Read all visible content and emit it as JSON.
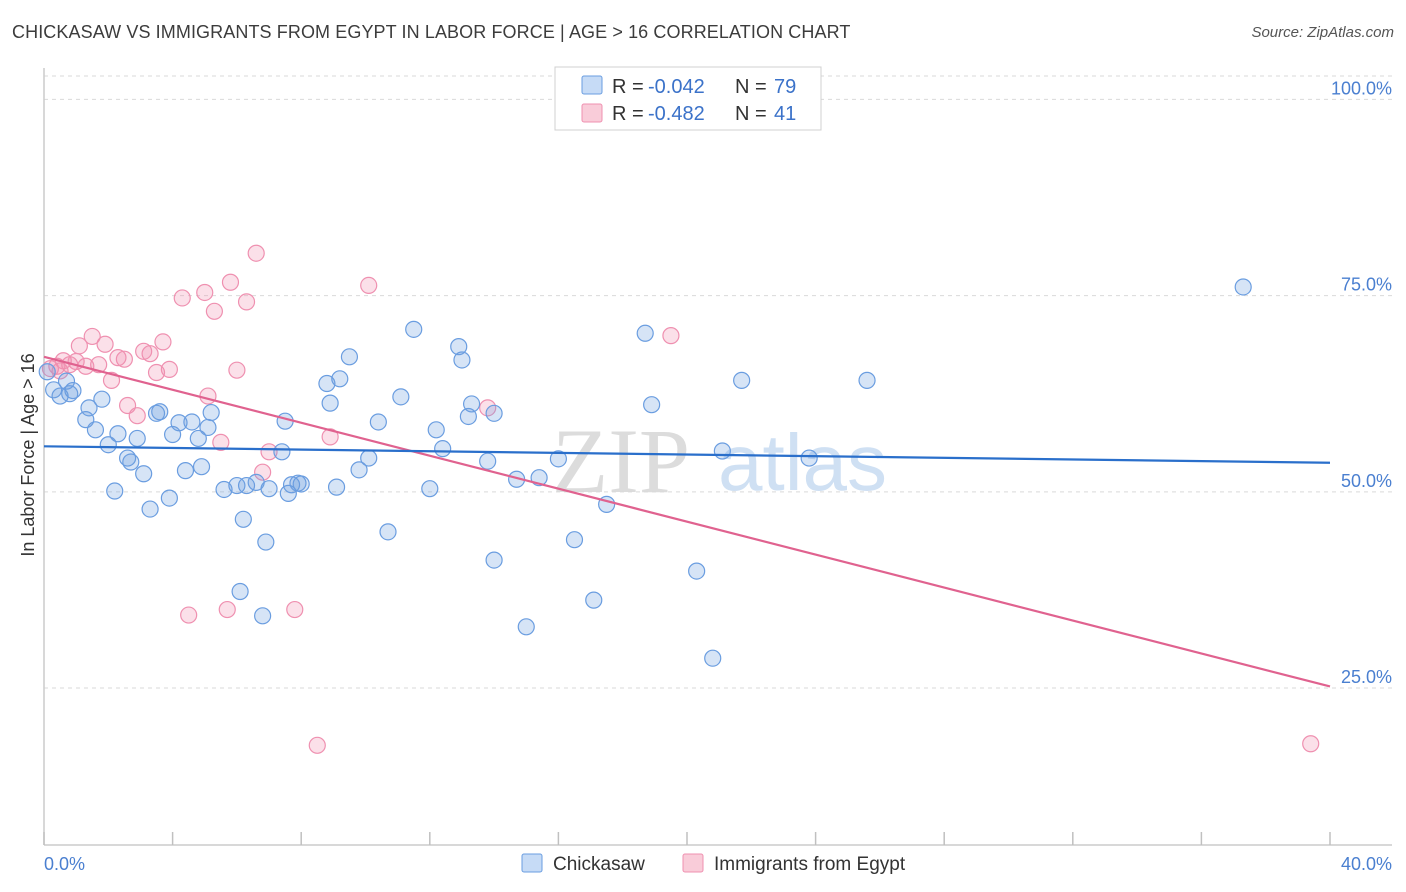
{
  "title": "CHICKASAW VS IMMIGRANTS FROM EGYPT IN LABOR FORCE | AGE > 16 CORRELATION CHART",
  "source": "Source: ZipAtlas.com",
  "watermark": {
    "zip": "ZIP",
    "atlas": "atlas"
  },
  "legend": {
    "r_label": "R =",
    "n_label": "N =",
    "rows": [
      {
        "r": "-0.042",
        "n": "79"
      },
      {
        "r": "-0.482",
        "n": "41"
      }
    ]
  },
  "bottom_legend": [
    "Chickasaw",
    "Immigrants from Egypt"
  ],
  "chart_data": {
    "type": "scatter",
    "title": "CHICKASAW VS IMMIGRANTS FROM EGYPT IN LABOR FORCE | AGE > 16 CORRELATION CHART",
    "ylabel": "In Labor Force | Age > 16",
    "xlabel": "",
    "xlim": [
      0,
      40
    ],
    "ylim": [
      5,
      104
    ],
    "x_tick_labels": [
      "0.0%",
      "40.0%"
    ],
    "y_ticks": [
      25,
      50,
      75,
      100
    ],
    "y_tick_labels": [
      "25.0%",
      "50.0%",
      "75.0%",
      "100.0%"
    ],
    "grid": "horizontal dashed",
    "colors": {
      "chickasaw": "#6a9de0",
      "chickasaw_line": "#2a6fcb",
      "egypt": "#ef90b0",
      "egypt_line": "#e0628f"
    },
    "series": [
      {
        "name": "Chickasaw",
        "r": -0.042,
        "n": 79,
        "trend": {
          "x": [
            0,
            40
          ],
          "y": [
            55.8,
            53.7
          ]
        },
        "points": [
          [
            0.1,
            65.3
          ],
          [
            0.3,
            63.0
          ],
          [
            0.5,
            62.2
          ],
          [
            0.7,
            64.1
          ],
          [
            0.8,
            62.5
          ],
          [
            0.9,
            62.9
          ],
          [
            1.3,
            59.2
          ],
          [
            1.4,
            60.7
          ],
          [
            1.6,
            57.9
          ],
          [
            1.8,
            61.8
          ],
          [
            2.0,
            56.0
          ],
          [
            2.2,
            50.1
          ],
          [
            2.3,
            57.4
          ],
          [
            2.6,
            54.3
          ],
          [
            2.7,
            53.8
          ],
          [
            2.9,
            56.8
          ],
          [
            3.1,
            52.3
          ],
          [
            3.3,
            47.8
          ],
          [
            3.5,
            60.0
          ],
          [
            3.6,
            60.2
          ],
          [
            3.9,
            49.2
          ],
          [
            4.0,
            57.3
          ],
          [
            4.2,
            58.8
          ],
          [
            4.4,
            52.7
          ],
          [
            4.6,
            58.9
          ],
          [
            4.8,
            56.8
          ],
          [
            4.9,
            53.2
          ],
          [
            5.1,
            58.2
          ],
          [
            5.2,
            60.1
          ],
          [
            5.6,
            50.3
          ],
          [
            6.0,
            50.8
          ],
          [
            6.2,
            46.5
          ],
          [
            6.3,
            50.8
          ],
          [
            6.6,
            51.2
          ],
          [
            6.8,
            34.2
          ],
          [
            6.9,
            43.6
          ],
          [
            6.1,
            37.3
          ],
          [
            7.0,
            50.4
          ],
          [
            7.4,
            55.1
          ],
          [
            7.5,
            59.0
          ],
          [
            7.6,
            49.8
          ],
          [
            7.7,
            50.9
          ],
          [
            7.9,
            51.1
          ],
          [
            8.0,
            51.0
          ],
          [
            8.8,
            63.8
          ],
          [
            8.9,
            61.3
          ],
          [
            9.1,
            50.6
          ],
          [
            9.2,
            64.4
          ],
          [
            9.5,
            67.2
          ],
          [
            9.8,
            52.8
          ],
          [
            10.1,
            54.3
          ],
          [
            10.4,
            58.9
          ],
          [
            10.7,
            44.9
          ],
          [
            11.1,
            62.1
          ],
          [
            11.5,
            70.7
          ],
          [
            12.0,
            50.4
          ],
          [
            12.2,
            57.9
          ],
          [
            12.4,
            55.5
          ],
          [
            12.9,
            68.5
          ],
          [
            13.0,
            66.8
          ],
          [
            13.2,
            59.6
          ],
          [
            13.3,
            61.2
          ],
          [
            13.8,
            53.9
          ],
          [
            14.7,
            51.6
          ],
          [
            14.0,
            60.0
          ],
          [
            14.0,
            41.3
          ],
          [
            15.0,
            32.8
          ],
          [
            15.4,
            51.8
          ],
          [
            16.0,
            54.2
          ],
          [
            16.5,
            43.9
          ],
          [
            17.1,
            36.2
          ],
          [
            17.5,
            48.4
          ],
          [
            18.7,
            70.2
          ],
          [
            18.9,
            61.1
          ],
          [
            20.3,
            39.9
          ],
          [
            20.8,
            28.8
          ],
          [
            21.1,
            55.2
          ],
          [
            21.7,
            64.2
          ],
          [
            23.8,
            54.3
          ],
          [
            25.6,
            64.2
          ],
          [
            37.3,
            76.1
          ]
        ]
      },
      {
        "name": "Immigrants from Egypt",
        "r": -0.482,
        "n": 41,
        "trend": {
          "x": [
            0,
            40
          ],
          "y": [
            67.2,
            25.2
          ]
        },
        "points": [
          [
            0.2,
            65.7
          ],
          [
            0.4,
            66.0
          ],
          [
            0.5,
            65.4
          ],
          [
            0.6,
            66.7
          ],
          [
            0.8,
            66.2
          ],
          [
            1.0,
            66.6
          ],
          [
            1.1,
            68.6
          ],
          [
            1.3,
            66.0
          ],
          [
            1.5,
            69.8
          ],
          [
            1.7,
            66.2
          ],
          [
            1.9,
            68.8
          ],
          [
            2.1,
            64.2
          ],
          [
            2.3,
            67.1
          ],
          [
            2.5,
            66.9
          ],
          [
            2.6,
            61.0
          ],
          [
            2.9,
            59.7
          ],
          [
            3.1,
            67.9
          ],
          [
            3.3,
            67.6
          ],
          [
            3.5,
            65.2
          ],
          [
            3.7,
            69.1
          ],
          [
            3.9,
            65.6
          ],
          [
            4.3,
            74.7
          ],
          [
            4.5,
            34.3
          ],
          [
            5.0,
            75.4
          ],
          [
            5.1,
            62.2
          ],
          [
            5.3,
            73.0
          ],
          [
            5.5,
            56.3
          ],
          [
            5.7,
            35.0
          ],
          [
            5.8,
            76.7
          ],
          [
            6.0,
            65.5
          ],
          [
            6.3,
            74.2
          ],
          [
            6.6,
            80.4
          ],
          [
            6.8,
            52.5
          ],
          [
            7.0,
            55.1
          ],
          [
            7.8,
            35.0
          ],
          [
            8.5,
            17.7
          ],
          [
            8.9,
            57.0
          ],
          [
            10.1,
            76.3
          ],
          [
            13.8,
            60.7
          ],
          [
            19.5,
            69.9
          ],
          [
            39.4,
            17.9
          ]
        ]
      }
    ]
  }
}
